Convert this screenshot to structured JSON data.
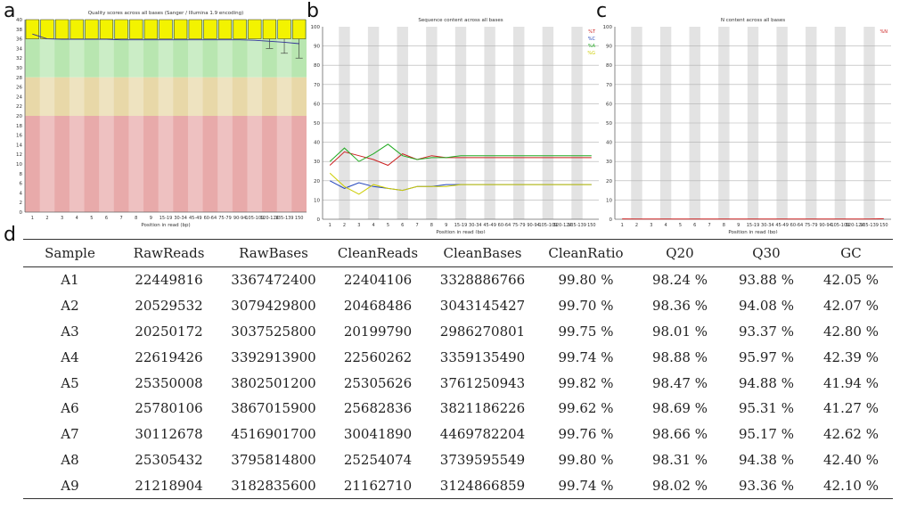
{
  "panels": {
    "a": "a",
    "b": "b",
    "c": "c",
    "d": "d"
  },
  "chart_data": [
    {
      "type": "box",
      "title": "Quality scores across all bases (Sanger / Illumina 1.9 encoding)",
      "xlabel": "Position in read (bp)",
      "ylabel": "",
      "ylim": [
        0,
        40
      ],
      "yticks": [
        "0",
        "2",
        "4",
        "6",
        "8",
        "10",
        "12",
        "14",
        "16",
        "18",
        "20",
        "22",
        "24",
        "26",
        "28",
        "30",
        "32",
        "34",
        "36",
        "38",
        "40"
      ],
      "categories": [
        "1",
        "2",
        "3",
        "4",
        "5",
        "6",
        "7",
        "8",
        "9",
        "15-19",
        "30-34",
        "45-49",
        "60-64",
        "75-79",
        "90-94",
        "105-109",
        "120-124",
        "135-139",
        "150"
      ],
      "series": [
        {
          "values": [
            37.0,
            36.0,
            35.9,
            35.9,
            35.9,
            35.9,
            35.8,
            35.8,
            35.8,
            35.8,
            35.8,
            35.8,
            35.8,
            35.8,
            35.8,
            35.7,
            35.5,
            35.3,
            35.0
          ]
        }
      ],
      "lower_whisker": [
        36,
        36,
        36,
        36,
        36,
        36,
        36,
        36,
        36,
        36,
        36,
        36,
        36,
        36,
        36,
        36,
        34,
        33,
        32
      ],
      "zones": {
        "good": "#b8e6b0",
        "ok": "#e8d8a8",
        "poor": "#e8aaaa",
        "box": "#f3f300"
      }
    },
    {
      "type": "line",
      "title": "Sequence content across all bases",
      "xlabel": "Position in read (bp)",
      "ylim": [
        0,
        100
      ],
      "yticks": [
        "0",
        "10",
        "20",
        "30",
        "40",
        "50",
        "60",
        "70",
        "80",
        "90",
        "100"
      ],
      "legend": [
        "%T",
        "%C",
        "%A",
        "%G"
      ],
      "categories": [
        "1",
        "2",
        "3",
        "4",
        "5",
        "6",
        "7",
        "8",
        "9",
        "15-19",
        "30-34",
        "45-49",
        "60-64",
        "75-79",
        "90-94",
        "105-109",
        "120-124",
        "135-139",
        "150"
      ],
      "series": [
        {
          "name": "%T",
          "color": "#cc2222",
          "values": [
            28,
            35,
            33,
            31,
            28,
            34,
            31,
            33,
            32,
            32,
            32,
            32,
            32,
            32,
            32,
            32,
            32,
            32,
            32
          ]
        },
        {
          "name": "%C",
          "color": "#2244bb",
          "values": [
            20,
            16,
            19,
            17,
            16,
            15,
            17,
            17,
            18,
            18,
            18,
            18,
            18,
            18,
            18,
            18,
            18,
            18,
            18
          ]
        },
        {
          "name": "%A",
          "color": "#22aa22",
          "values": [
            30,
            37,
            30,
            34,
            39,
            33,
            31,
            32,
            32,
            33,
            33,
            33,
            33,
            33,
            33,
            33,
            33,
            33,
            33
          ]
        },
        {
          "name": "%G",
          "color": "#cccc00",
          "values": [
            24,
            17,
            13,
            18,
            16,
            15,
            17,
            17,
            17,
            18,
            18,
            18,
            18,
            18,
            18,
            18,
            18,
            18,
            18
          ]
        }
      ]
    },
    {
      "type": "line",
      "title": "N content across all bases",
      "xlabel": "Position in read (bp)",
      "ylim": [
        0,
        100
      ],
      "yticks": [
        "0",
        "10",
        "20",
        "30",
        "40",
        "50",
        "60",
        "70",
        "80",
        "90",
        "100"
      ],
      "legend": [
        "%N"
      ],
      "categories": [
        "1",
        "2",
        "3",
        "4",
        "5",
        "6",
        "7",
        "8",
        "9",
        "15-19",
        "30-34",
        "45-49",
        "60-64",
        "75-79",
        "90-94",
        "105-109",
        "120-124",
        "135-139",
        "150"
      ],
      "series": [
        {
          "name": "%N",
          "color": "#cc2222",
          "values": [
            0.2,
            0.1,
            0.1,
            0.1,
            0.1,
            0.1,
            0.1,
            0.1,
            0.1,
            0.1,
            0.1,
            0.1,
            0.1,
            0.1,
            0.1,
            0.1,
            0.1,
            0.1,
            0.3
          ]
        }
      ]
    },
    {
      "type": "table",
      "headers": [
        "Sample",
        "RawReads",
        "RawBases",
        "CleanReads",
        "CleanBases",
        "CleanRatio",
        "Q20",
        "Q30",
        "GC"
      ],
      "rows": [
        [
          "A1",
          "22449816",
          "3367472400",
          "22404106",
          "3328886766",
          "99.80 %",
          "98.24 %",
          "93.88 %",
          "42.05 %"
        ],
        [
          "A2",
          "20529532",
          "3079429800",
          "20468486",
          "3043145427",
          "99.70 %",
          "98.36 %",
          "94.08 %",
          "42.07 %"
        ],
        [
          "A3",
          "20250172",
          "3037525800",
          "20199790",
          "2986270801",
          "99.75 %",
          "98.01 %",
          "93.37 %",
          "42.80 %"
        ],
        [
          "A4",
          "22619426",
          "3392913900",
          "22560262",
          "3359135490",
          "99.74 %",
          "98.88 %",
          "95.97 %",
          "42.39 %"
        ],
        [
          "A5",
          "25350008",
          "3802501200",
          "25305626",
          "3761250943",
          "99.82 %",
          "98.47 %",
          "94.88 %",
          "41.94 %"
        ],
        [
          "A6",
          "25780106",
          "3867015900",
          "25682836",
          "3821186226",
          "99.62 %",
          "98.69 %",
          "95.31 %",
          "41.27 %"
        ],
        [
          "A7",
          "30112678",
          "4516901700",
          "30041890",
          "4469782204",
          "99.76 %",
          "98.66 %",
          "95.17 %",
          "42.62 %"
        ],
        [
          "A8",
          "25305432",
          "3795814800",
          "25254074",
          "3739595549",
          "99.80 %",
          "98.31 %",
          "94.38 %",
          "42.40 %"
        ],
        [
          "A9",
          "21218904",
          "3182835600",
          "21162710",
          "3124866859",
          "99.74 %",
          "98.02 %",
          "93.36 %",
          "42.10 %"
        ]
      ]
    }
  ]
}
